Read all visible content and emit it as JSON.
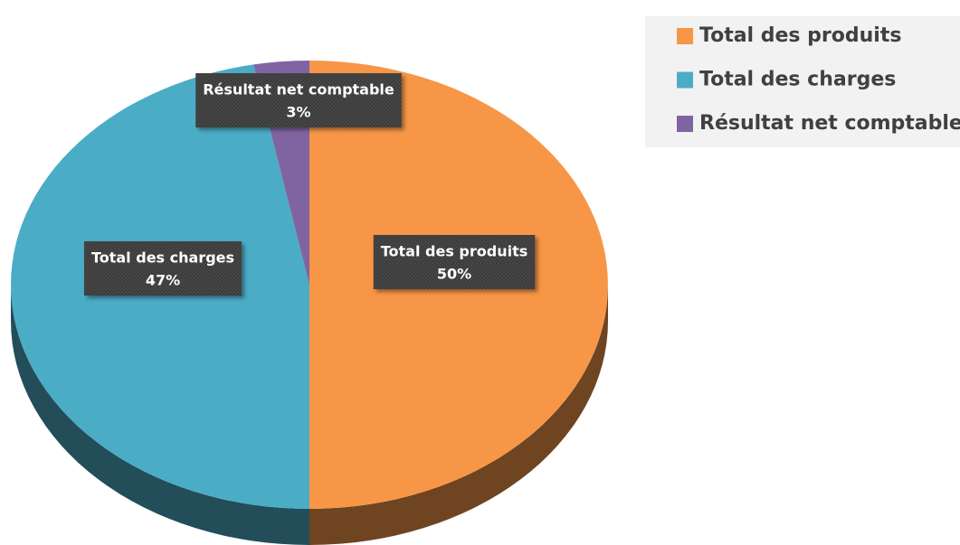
{
  "chart_data": {
    "type": "pie",
    "categories": [
      "Total des produits",
      "Total des charges",
      "Résultat net comptable"
    ],
    "values": [
      50,
      47,
      3
    ],
    "value_labels": [
      "50%",
      "47%",
      "3%"
    ],
    "colors": [
      "#f79646",
      "#4bacc6",
      "#8064a2"
    ],
    "legend": "top-right"
  }
}
